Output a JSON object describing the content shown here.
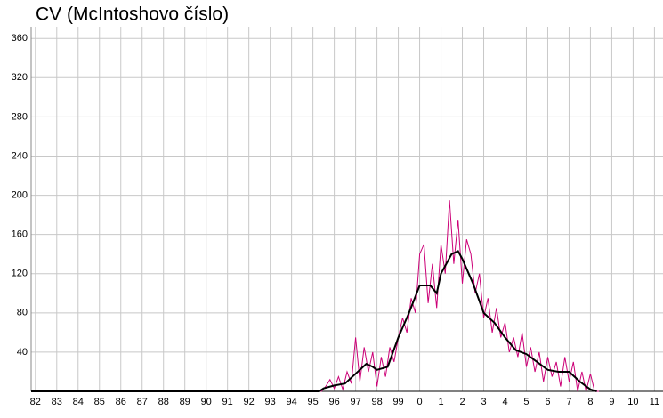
{
  "chart_data": {
    "type": "line",
    "title": "CV  (McIntoshovo číslo)",
    "xlim": [
      -0.2,
      29.4
    ],
    "xticks": [
      {
        "value": 0,
        "label": "82"
      },
      {
        "value": 1,
        "label": "83"
      },
      {
        "value": 2,
        "label": "84"
      },
      {
        "value": 3,
        "label": "85"
      },
      {
        "value": 4,
        "label": "86"
      },
      {
        "value": 5,
        "label": "87"
      },
      {
        "value": 6,
        "label": "88"
      },
      {
        "value": 7,
        "label": "89"
      },
      {
        "value": 8,
        "label": "90"
      },
      {
        "value": 9,
        "label": "91"
      },
      {
        "value": 10,
        "label": "92"
      },
      {
        "value": 11,
        "label": "93"
      },
      {
        "value": 12,
        "label": "94"
      },
      {
        "value": 13,
        "label": "95"
      },
      {
        "value": 14,
        "label": "96"
      },
      {
        "value": 15,
        "label": "97"
      },
      {
        "value": 16,
        "label": "98"
      },
      {
        "value": 17,
        "label": "99"
      },
      {
        "value": 18,
        "label": "0"
      },
      {
        "value": 19,
        "label": "1"
      },
      {
        "value": 20,
        "label": "2"
      },
      {
        "value": 21,
        "label": "3"
      },
      {
        "value": 22,
        "label": "4"
      },
      {
        "value": 23,
        "label": "5"
      },
      {
        "value": 24,
        "label": "6"
      },
      {
        "value": 25,
        "label": "7"
      },
      {
        "value": 26,
        "label": "8"
      },
      {
        "value": 27,
        "label": "9"
      },
      {
        "value": 28,
        "label": "10"
      },
      {
        "value": 29,
        "label": "11"
      }
    ],
    "ylim": [
      0,
      372
    ],
    "yticks": [
      40,
      80,
      120,
      160,
      200,
      240,
      280,
      320,
      360
    ],
    "grid": true,
    "series": [
      {
        "color": "#cc0077",
        "x": [
          -0.2,
          13.2,
          13.4,
          13.6,
          13.8,
          14.0,
          14.2,
          14.4,
          14.6,
          14.8,
          15.0,
          15.2,
          15.4,
          15.6,
          15.8,
          16.0,
          16.2,
          16.4,
          16.6,
          16.8,
          17.0,
          17.2,
          17.4,
          17.6,
          17.8,
          18.0,
          18.2,
          18.4,
          18.6,
          18.8,
          19.0,
          19.2,
          19.4,
          19.6,
          19.8,
          20.0,
          20.2,
          20.4,
          20.6,
          20.8,
          21.0,
          21.2,
          21.4,
          21.6,
          21.8,
          22.0,
          22.2,
          22.4,
          22.6,
          22.8,
          23.0,
          23.2,
          23.4,
          23.6,
          23.8,
          24.0,
          24.2,
          24.4,
          24.6,
          24.8,
          25.0,
          25.2,
          25.4,
          25.6,
          25.8,
          26.0,
          26.2,
          26.4
        ],
        "values": [
          0,
          0,
          0,
          5,
          12,
          3,
          15,
          2,
          20,
          8,
          55,
          10,
          45,
          20,
          40,
          5,
          35,
          15,
          45,
          30,
          55,
          75,
          60,
          95,
          80,
          140,
          150,
          90,
          130,
          85,
          150,
          120,
          195,
          130,
          175,
          110,
          155,
          140,
          100,
          120,
          75,
          95,
          60,
          85,
          55,
          70,
          40,
          55,
          35,
          60,
          25,
          45,
          20,
          40,
          10,
          35,
          15,
          30,
          5,
          35,
          10,
          30,
          0,
          20,
          0,
          18,
          0,
          0
        ]
      },
      {
        "color": "#000000",
        "x": [
          -0.2,
          13.3,
          13.5,
          14.0,
          14.5,
          15.0,
          15.5,
          15.8,
          16.0,
          16.5,
          17.0,
          17.5,
          18.0,
          18.5,
          18.8,
          19.0,
          19.5,
          19.8,
          20.0,
          20.5,
          21.0,
          21.5,
          22.0,
          22.5,
          23.0,
          23.5,
          24.0,
          24.5,
          25.0,
          25.5,
          26.0,
          26.3
        ],
        "values": [
          0,
          0,
          3,
          6,
          8,
          18,
          28,
          25,
          22,
          25,
          55,
          80,
          108,
          108,
          100,
          120,
          140,
          143,
          135,
          110,
          80,
          70,
          55,
          42,
          38,
          30,
          22,
          20,
          20,
          10,
          2,
          0
        ]
      }
    ]
  }
}
